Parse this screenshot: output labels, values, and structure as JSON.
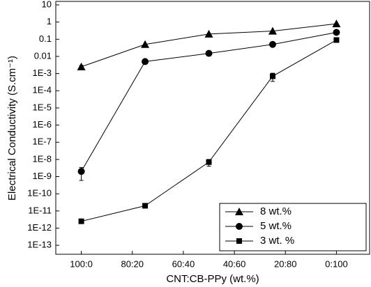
{
  "chart_data": {
    "type": "line",
    "x_label": "CNT:CB-PPy (wt.%)",
    "y_label": "Electrical Conductivity (S.cm⁻¹)",
    "x": [
      0,
      25,
      50,
      75,
      100
    ],
    "xlim": [
      -10,
      113
    ],
    "xticks": [
      {
        "value": 0,
        "label": "100:0"
      },
      {
        "value": 20,
        "label": "80:20"
      },
      {
        "value": 40,
        "label": "60:40"
      },
      {
        "value": 60,
        "label": "40:60"
      },
      {
        "value": 80,
        "label": "20:80"
      },
      {
        "value": 100,
        "label": "0:100"
      }
    ],
    "ylim": [
      3e-14,
      16
    ],
    "yscale": "log",
    "yticks": [
      10,
      1,
      0.1,
      0.01,
      {
        "value": 0.001,
        "label": "1E-3"
      },
      {
        "value": 0.0001,
        "label": "1E-4"
      },
      {
        "value": 1e-05,
        "label": "1E-5"
      },
      {
        "value": 1e-06,
        "label": "1E-6"
      },
      {
        "value": 1e-07,
        "label": "1E-7"
      },
      {
        "value": 1e-08,
        "label": "1E-8"
      },
      {
        "value": 1e-09,
        "label": "1E-9"
      },
      {
        "value": 1e-10,
        "label": "1E-10"
      },
      {
        "value": 1e-11,
        "label": "1E-11"
      },
      {
        "value": 1e-12,
        "label": "1E-12"
      },
      {
        "value": 1e-13,
        "label": "1E-13"
      }
    ],
    "legend": "lower right",
    "series": [
      {
        "name": "8 wt.%",
        "color": "#000000",
        "marker": "triangle",
        "values": [
          0.0025,
          0.05,
          0.2,
          0.3,
          0.8
        ],
        "errors": [
          0.0005,
          null,
          null,
          null,
          null
        ]
      },
      {
        "name": "5 wt.%",
        "color": "#000000",
        "marker": "circle",
        "values": [
          2e-09,
          0.005,
          0.015,
          0.05,
          0.25
        ],
        "errors": [
          1.4e-09,
          null,
          null,
          null,
          null
        ]
      },
      {
        "name": "3 wt. %",
        "color": "#000000",
        "marker": "square",
        "values": [
          2.5e-12,
          2e-11,
          7e-09,
          0.0007,
          0.09
        ],
        "errors": [
          null,
          null,
          3e-09,
          0.00035,
          null
        ]
      }
    ]
  }
}
